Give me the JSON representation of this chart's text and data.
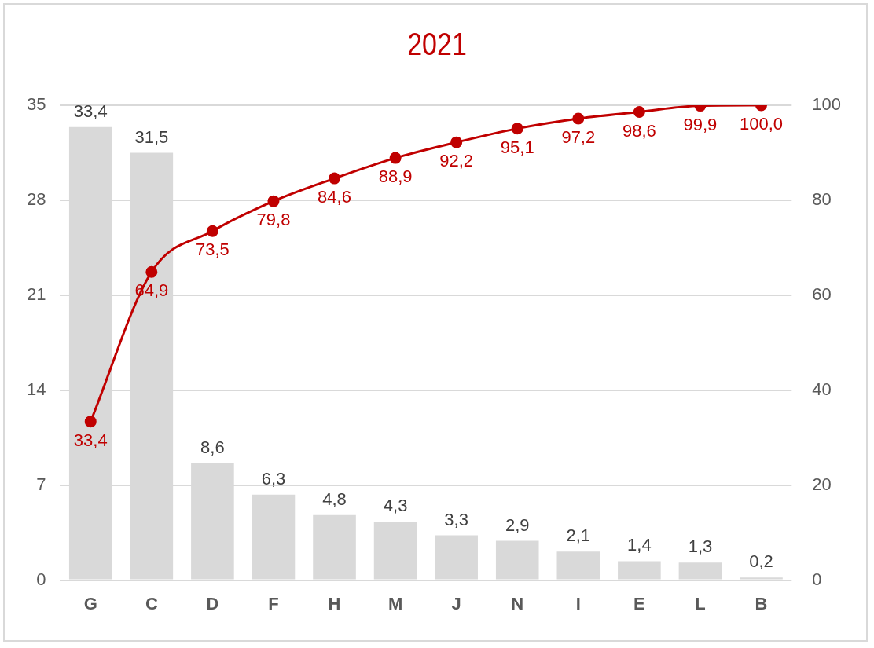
{
  "chart_data": {
    "type": "bar",
    "title": "2021",
    "categories": [
      "G",
      "C",
      "D",
      "F",
      "H",
      "M",
      "J",
      "N",
      "I",
      "E",
      "L",
      "B"
    ],
    "series": [
      {
        "color": "#d9d9d9",
        "values": [
          33.4,
          31.5,
          8.6,
          6.3,
          4.8,
          4.3,
          3.3,
          2.9,
          2.1,
          1.4,
          1.3,
          0.2
        ],
        "value_labels": [
          "33,4",
          "31,5",
          "8,6",
          "6,3",
          "4,8",
          "4,3",
          "3,3",
          "2,9",
          "2,1",
          "1,4",
          "1,3",
          "0,2"
        ]
      },
      {
        "type": "line",
        "axis": "y2",
        "color": "#c00000",
        "marker": "circle",
        "values": [
          33.4,
          64.9,
          73.5,
          79.8,
          84.6,
          88.9,
          92.2,
          95.1,
          97.2,
          98.6,
          99.9,
          100.0
        ],
        "value_labels": [
          "33,4",
          "64,9",
          "73,5",
          "79,8",
          "84,6",
          "88,9",
          "92,2",
          "95,1",
          "97,2",
          "98,6",
          "99,9",
          "100,0"
        ]
      }
    ],
    "ylim": [
      0,
      35
    ],
    "yticks": [
      0,
      7,
      14,
      21,
      28,
      35
    ],
    "y2lim": [
      0,
      100
    ],
    "y2ticks": [
      0,
      20,
      40,
      60,
      80,
      100
    ],
    "grid": "y"
  }
}
